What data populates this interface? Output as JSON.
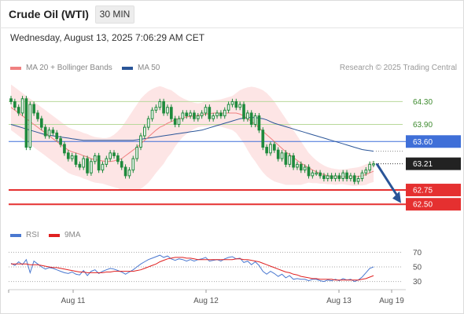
{
  "header": {
    "title": "Crude Oil (WTI)",
    "timeframe": "30 MIN",
    "datetime": "Wednesday, August 13, 2025 7:06:29 AM CET"
  },
  "legend": {
    "ma20_label": "MA 20 + Bollinger Bands",
    "ma50_label": "MA 50",
    "rsi_label": "RSI",
    "ma9_label": "9MA"
  },
  "copyright": "Research © 2025 Trading Central",
  "colors": {
    "ma20": "#f08080",
    "ma50": "#2a5598",
    "bb_fill": "#fde0e0",
    "candle": "#1e8a3c",
    "rsi": "#4a78d0",
    "rsi_ma": "#e02020",
    "resistance_line": "#b8d89a",
    "level_blue": "#3f6fd8",
    "level_red": "#e53030",
    "arrow": "#2a5598"
  },
  "chart_data": {
    "type": "candlestick",
    "title": "Crude Oil (WTI)",
    "timeframe": "30 MIN",
    "x_labels": [
      "Aug 11",
      "Aug 12",
      "Aug 13",
      "Aug 19"
    ],
    "ylim": [
      62.2,
      64.65
    ],
    "levels": [
      {
        "value": 64.3,
        "label": "64.30",
        "style": "resistance"
      },
      {
        "value": 63.9,
        "label": "63.90",
        "style": "resistance"
      },
      {
        "value": 63.6,
        "label": "63.60",
        "style": "pivot"
      },
      {
        "value": 63.21,
        "label": "63.21",
        "style": "last"
      },
      {
        "value": 62.75,
        "label": "62.75",
        "style": "support"
      },
      {
        "value": 62.5,
        "label": "62.50",
        "style": "support"
      }
    ],
    "last_price": 63.21,
    "closes": [
      64.3,
      64.2,
      64.1,
      64.35,
      63.5,
      64.25,
      64.1,
      64.0,
      63.85,
      63.7,
      63.8,
      63.75,
      63.65,
      63.55,
      63.4,
      63.3,
      63.35,
      63.2,
      63.15,
      63.3,
      63.05,
      63.25,
      63.35,
      63.1,
      63.2,
      63.3,
      63.4,
      63.35,
      63.25,
      63.15,
      63.0,
      63.1,
      63.3,
      63.5,
      63.7,
      63.85,
      64.0,
      64.15,
      64.2,
      64.3,
      64.1,
      64.2,
      64.0,
      63.9,
      64.0,
      64.1,
      64.05,
      64.1,
      64.0,
      64.05,
      64.1,
      64.2,
      64.0,
      64.05,
      64.1,
      64.05,
      64.15,
      64.25,
      64.3,
      64.2,
      64.25,
      64.0,
      64.1,
      63.9,
      64.05,
      63.8,
      63.5,
      63.4,
      63.55,
      63.45,
      63.3,
      63.4,
      63.2,
      63.35,
      63.15,
      63.2,
      63.1,
      63.15,
      63.0,
      63.05,
      63.05,
      63.0,
      62.95,
      63.0,
      62.95,
      63.0,
      62.95,
      63.05,
      62.95,
      63.0,
      62.9,
      62.95,
      63.05,
      63.1,
      63.2,
      63.21
    ],
    "ma20": [
      64.2,
      64.15,
      64.1,
      64.05,
      64.0,
      63.95,
      63.9,
      63.85,
      63.8,
      63.75,
      63.7,
      63.65,
      63.6,
      63.55,
      63.5,
      63.45,
      63.42,
      63.4,
      63.38,
      63.35,
      63.33,
      63.3,
      63.28,
      63.27,
      63.26,
      63.25,
      63.25,
      63.26,
      63.28,
      63.3,
      63.35,
      63.4,
      63.45,
      63.5,
      63.56,
      63.62,
      63.68,
      63.74,
      63.8,
      63.85,
      63.88,
      63.92,
      63.95,
      63.98,
      64.0,
      64.02,
      64.03,
      64.04,
      64.05,
      64.06,
      64.07,
      64.08,
      64.09,
      64.1,
      64.1,
      64.1,
      64.1,
      64.1,
      64.1,
      64.1,
      64.08,
      64.05,
      64.0,
      63.95,
      63.9,
      63.84,
      63.78,
      63.72,
      63.66,
      63.6,
      63.54,
      63.48,
      63.42,
      63.37,
      63.32,
      63.27,
      63.22,
      63.18,
      63.14,
      63.1,
      63.07,
      63.04,
      63.02,
      63.0,
      62.99,
      62.98,
      62.98,
      62.98,
      62.98,
      62.98,
      62.98,
      62.99,
      63.0,
      63.02,
      63.05,
      63.08
    ],
    "bb_upper": [
      64.6,
      64.55,
      64.5,
      64.45,
      64.4,
      64.35,
      64.3,
      64.25,
      64.2,
      64.15,
      64.1,
      64.05,
      64.0,
      63.95,
      63.9,
      63.85,
      63.82,
      63.8,
      63.78,
      63.75,
      63.73,
      63.7,
      63.68,
      63.67,
      63.66,
      63.66,
      63.68,
      63.72,
      63.78,
      63.85,
      63.95,
      64.05,
      64.15,
      64.25,
      64.35,
      64.42,
      64.48,
      64.52,
      64.55,
      64.57,
      64.55,
      64.52,
      64.5,
      64.45,
      64.4,
      64.36,
      64.33,
      64.3,
      64.28,
      64.27,
      64.28,
      64.3,
      64.31,
      64.32,
      64.33,
      64.34,
      64.36,
      64.38,
      64.4,
      64.45,
      64.5,
      64.53,
      64.55,
      64.56,
      64.55,
      64.53,
      64.5,
      64.45,
      64.38,
      64.3,
      64.2,
      64.1,
      64.0,
      63.9,
      63.8,
      63.7,
      63.6,
      63.5,
      63.4,
      63.33,
      63.27,
      63.22,
      63.18,
      63.15,
      63.13,
      63.12,
      63.11,
      63.11,
      63.12,
      63.13,
      63.14,
      63.15,
      63.17,
      63.2,
      63.23,
      63.27
    ],
    "bb_lower": [
      63.8,
      63.75,
      63.7,
      63.65,
      63.6,
      63.55,
      63.5,
      63.45,
      63.4,
      63.35,
      63.3,
      63.25,
      63.2,
      63.15,
      63.1,
      63.05,
      63.02,
      63.0,
      62.98,
      62.95,
      62.93,
      62.9,
      62.88,
      62.87,
      62.86,
      62.84,
      62.82,
      62.8,
      62.78,
      62.75,
      62.75,
      62.75,
      62.75,
      62.75,
      62.77,
      62.82,
      62.88,
      62.96,
      63.05,
      63.13,
      63.21,
      63.32,
      63.4,
      63.51,
      63.6,
      63.68,
      63.73,
      63.78,
      63.82,
      63.85,
      63.86,
      63.86,
      63.87,
      63.88,
      63.87,
      63.86,
      63.84,
      63.82,
      63.8,
      63.75,
      63.66,
      63.57,
      63.45,
      63.34,
      63.25,
      63.15,
      63.06,
      62.99,
      62.94,
      62.9,
      62.88,
      62.86,
      62.84,
      62.84,
      62.84,
      62.84,
      62.84,
      62.86,
      62.88,
      62.87,
      62.87,
      62.86,
      62.86,
      62.85,
      62.85,
      62.84,
      62.85,
      62.85,
      62.84,
      62.83,
      62.82,
      62.83,
      62.83,
      62.84,
      62.87,
      62.89
    ],
    "ma50": [
      63.9,
      63.88,
      63.86,
      63.84,
      63.82,
      63.8,
      63.78,
      63.76,
      63.74,
      63.72,
      63.71,
      63.7,
      63.69,
      63.68,
      63.67,
      63.66,
      63.65,
      63.64,
      63.63,
      63.62,
      63.62,
      63.62,
      63.62,
      63.62,
      63.62,
      63.62,
      63.62,
      63.62,
      63.62,
      63.62,
      63.62,
      63.62,
      63.62,
      63.63,
      63.64,
      63.65,
      63.66,
      63.67,
      63.68,
      63.69,
      63.7,
      63.71,
      63.72,
      63.73,
      63.74,
      63.75,
      63.76,
      63.77,
      63.78,
      63.79,
      63.8,
      63.82,
      63.84,
      63.86,
      63.88,
      63.9,
      63.92,
      63.94,
      63.96,
      63.98,
      64.0,
      64.01,
      64.02,
      64.02,
      64.02,
      64.01,
      64.0,
      63.98,
      63.95,
      63.92,
      63.9,
      63.88,
      63.86,
      63.84,
      63.82,
      63.8,
      63.78,
      63.76,
      63.74,
      63.72,
      63.7,
      63.68,
      63.66,
      63.64,
      63.62,
      63.6,
      63.58,
      63.56,
      63.54,
      63.52,
      63.5,
      63.48,
      63.46,
      63.45,
      63.44,
      63.43
    ],
    "rsi": {
      "ylim": [
        22,
        78
      ],
      "ticks": [
        70,
        50,
        30
      ],
      "values": [
        55,
        52,
        57,
        53,
        60,
        42,
        58,
        54,
        50,
        47,
        49,
        48,
        46,
        44,
        42,
        41,
        43,
        40,
        39,
        45,
        38,
        44,
        46,
        41,
        44,
        46,
        48,
        47,
        45,
        43,
        40,
        43,
        46,
        50,
        54,
        57,
        60,
        62,
        64,
        66,
        63,
        65,
        61,
        59,
        61,
        60,
        58,
        60,
        58,
        60,
        61,
        63,
        58,
        59,
        60,
        58,
        61,
        63,
        64,
        61,
        62,
        56,
        58,
        53,
        57,
        52,
        44,
        40,
        44,
        41,
        37,
        40,
        35,
        38,
        33,
        34,
        33,
        33,
        31,
        33,
        33,
        31,
        30,
        32,
        31,
        33,
        31,
        34,
        32,
        33,
        30,
        32,
        36,
        42,
        48,
        50
      ],
      "ma9": [
        54,
        54,
        54,
        54,
        54,
        53,
        53,
        53,
        52,
        51,
        50,
        49,
        49,
        48,
        47,
        46,
        45,
        44,
        43,
        43,
        42,
        42,
        42,
        42,
        42,
        43,
        43,
        44,
        44,
        44,
        44,
        44,
        44,
        45,
        46,
        48,
        50,
        52,
        54,
        57,
        59,
        61,
        62,
        63,
        63,
        63,
        62,
        62,
        61,
        60,
        60,
        60,
        60,
        60,
        60,
        60,
        60,
        60,
        60,
        61,
        61,
        60,
        60,
        59,
        58,
        57,
        55,
        53,
        51,
        49,
        47,
        45,
        43,
        42,
        40,
        39,
        37,
        36,
        35,
        34,
        34,
        33,
        33,
        33,
        33,
        32,
        32,
        32,
        32,
        32,
        32,
        32,
        33,
        34,
        36,
        38
      ]
    }
  }
}
